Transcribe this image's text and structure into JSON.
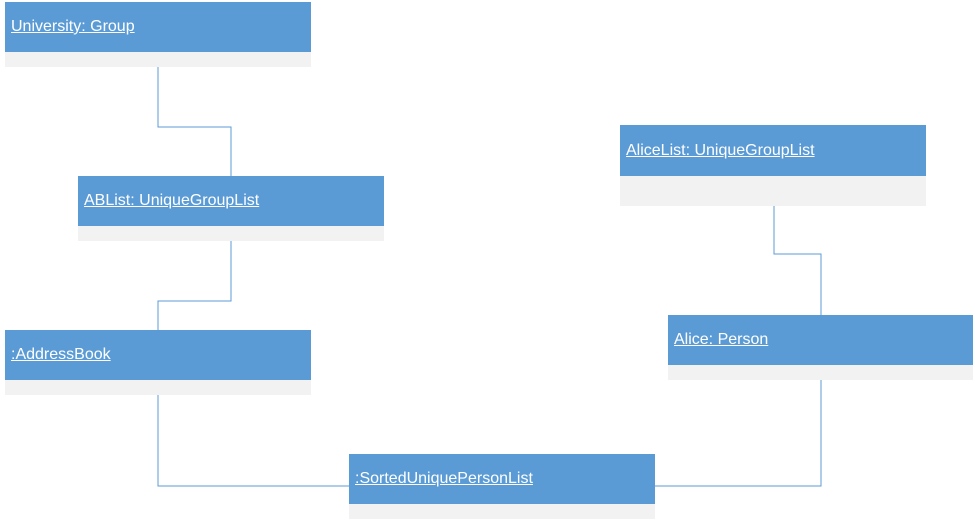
{
  "diagram": {
    "objects": {
      "university": {
        "label": "University: Group"
      },
      "ablist": {
        "label": "ABList: UniqueGroupList"
      },
      "addressbook": {
        "label": ":AddressBook"
      },
      "sortedlist": {
        "label": ":SortedUniquePersonList"
      },
      "alicelist": {
        "label": "AliceList: UniqueGroupList"
      },
      "alice": {
        "label": "Alice: Person"
      }
    },
    "colors": {
      "header": "#5b9bd5",
      "body": "#f2f2f2",
      "connector": "#5b9bd5",
      "text": "#ffffff"
    }
  }
}
